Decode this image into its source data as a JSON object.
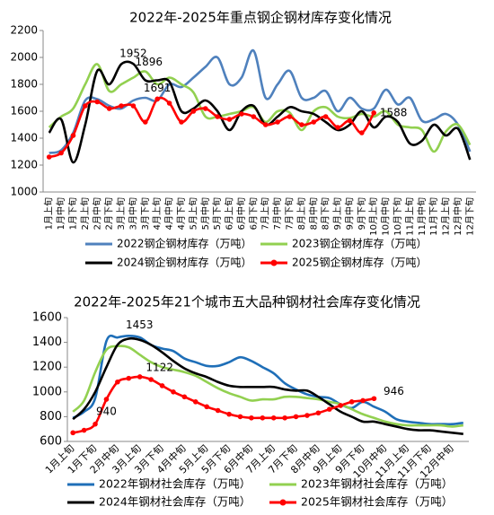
{
  "chart_data": [
    {
      "type": "line",
      "title": "2022年-2025年重点钢企钢材库存变化情况",
      "categories": [
        "1月上旬",
        "1月中旬",
        "1月下旬",
        "2月上旬",
        "2月中旬",
        "2月下旬",
        "3月上旬",
        "3月中旬",
        "3月下旬",
        "4月上旬",
        "4月中旬",
        "4月下旬",
        "5月上旬",
        "5月中旬",
        "5月下旬",
        "6月上旬",
        "6月中旬",
        "6月下旬",
        "7月上旬",
        "7月中旬",
        "7月下旬",
        "8月上旬",
        "8月中旬",
        "8月下旬",
        "9月上旬",
        "9月中旬",
        "9月下旬",
        "10月上旬",
        "10月中旬",
        "10月下旬",
        "11月上旬",
        "11月中旬",
        "11月下旬",
        "12月上旬",
        "12月中旬",
        "12月下旬"
      ],
      "series": [
        {
          "name": "2022钢企钢材库存（万吨）",
          "color": "#4f81bd",
          "values": [
            1290,
            1310,
            1440,
            1680,
            1690,
            1640,
            1620,
            1680,
            1700,
            1680,
            1800,
            1780,
            1850,
            1930,
            2000,
            1800,
            1850,
            2050,
            1700,
            1800,
            1900,
            1700,
            1700,
            1750,
            1600,
            1700,
            1620,
            1620,
            1760,
            1650,
            1700,
            1530,
            1540,
            1580,
            1500,
            1300
          ]
        },
        {
          "name": "2023钢企钢材库存（万吨）",
          "color": "#92d050",
          "values": [
            1480,
            1560,
            1620,
            1800,
            1950,
            1750,
            1800,
            1850,
            1896,
            1800,
            1850,
            1800,
            1740,
            1560,
            1560,
            1580,
            1600,
            1630,
            1520,
            1600,
            1590,
            1460,
            1600,
            1630,
            1560,
            1550,
            1580,
            1560,
            1600,
            1500,
            1480,
            1460,
            1300,
            1450,
            1500,
            1350
          ]
        },
        {
          "name": "2024钢企钢材库存（万吨）",
          "color": "#000000",
          "values": [
            1440,
            1540,
            1220,
            1500,
            1900,
            1800,
            1950,
            1952,
            1830,
            1830,
            1820,
            1600,
            1620,
            1680,
            1600,
            1460,
            1600,
            1640,
            1500,
            1560,
            1630,
            1600,
            1580,
            1520,
            1460,
            1500,
            1600,
            1480,
            1560,
            1520,
            1360,
            1380,
            1500,
            1420,
            1470,
            1240
          ]
        },
        {
          "name": "2025钢企钢材库存（万吨）",
          "color": "#ff0000",
          "markers": true,
          "values": [
            1260,
            1290,
            1420,
            1640,
            1670,
            1620,
            1640,
            1640,
            1520,
            1691,
            1660,
            1520,
            1600,
            1620,
            1560,
            1540,
            1580,
            1560,
            1500,
            1520,
            1560,
            1500,
            1520,
            1560,
            1480,
            1530,
            1440,
            1588,
            null,
            null,
            null,
            null,
            null,
            null,
            null,
            null
          ]
        }
      ],
      "ylim": [
        1000,
        2200
      ],
      "yticks": [
        1000,
        1200,
        1400,
        1600,
        1800,
        2000,
        2200
      ]
    },
    {
      "type": "line",
      "title": "2022年-2025年21个城市五大品种钢材社会库存变化情况",
      "categories": [
        "1月上旬",
        null,
        "1月下旬",
        null,
        "2月中旬",
        null,
        "3月上旬",
        null,
        "3月下旬",
        null,
        "4月中旬",
        null,
        "5月上旬",
        null,
        "5月下旬",
        null,
        "6月中旬",
        null,
        "7月上旬",
        null,
        "7月下旬",
        null,
        "8月中旬",
        null,
        "9月上旬",
        null,
        "9月下旬",
        null,
        "10月中旬",
        null,
        "11月上旬",
        null,
        "11月下旬",
        null,
        "12月中旬",
        null
      ],
      "series": [
        {
          "name": "2022年钢材社会库存（万吨）",
          "color": "#1f6fb8",
          "values": [
            790,
            840,
            950,
            1410,
            1440,
            1453,
            1440,
            1380,
            1350,
            1330,
            1270,
            1240,
            1210,
            1210,
            1240,
            1280,
            1250,
            1200,
            1150,
            1070,
            1020,
            980,
            960,
            950,
            900,
            870,
            920,
            880,
            840,
            780,
            760,
            750,
            740,
            740,
            740,
            750
          ]
        },
        {
          "name": "2023年钢材社会库存（万吨）",
          "color": "#92d050",
          "values": [
            840,
            930,
            1160,
            1340,
            1370,
            1360,
            1300,
            1240,
            1200,
            1180,
            1160,
            1130,
            1080,
            1030,
            990,
            960,
            930,
            940,
            940,
            960,
            960,
            950,
            940,
            920,
            900,
            860,
            820,
            790,
            760,
            740,
            730,
            730,
            730,
            730,
            720,
            730
          ]
        },
        {
          "name": "2024年钢材社会库存（万吨）",
          "color": "#000000",
          "values": [
            780,
            860,
            1000,
            1200,
            1380,
            1430,
            1420,
            1380,
            1320,
            1250,
            1190,
            1150,
            1120,
            1080,
            1050,
            1040,
            1040,
            1040,
            1040,
            1020,
            1010,
            1010,
            960,
            900,
            840,
            800,
            760,
            760,
            740,
            720,
            700,
            690,
            690,
            680,
            670,
            660
          ]
        },
        {
          "name": "2025年钢材社会库存（万吨）",
          "color": "#ff0000",
          "markers": true,
          "values": [
            670,
            690,
            740,
            940,
            1080,
            1110,
            1122,
            1100,
            1050,
            1000,
            960,
            920,
            880,
            850,
            820,
            800,
            790,
            790,
            790,
            790,
            800,
            810,
            830,
            860,
            890,
            920,
            930,
            946,
            null,
            null,
            null,
            null,
            null,
            null,
            null,
            null
          ]
        }
      ],
      "ylim": [
        600,
        1600
      ],
      "yticks": [
        600,
        800,
        1000,
        1200,
        1400,
        1600
      ]
    }
  ]
}
